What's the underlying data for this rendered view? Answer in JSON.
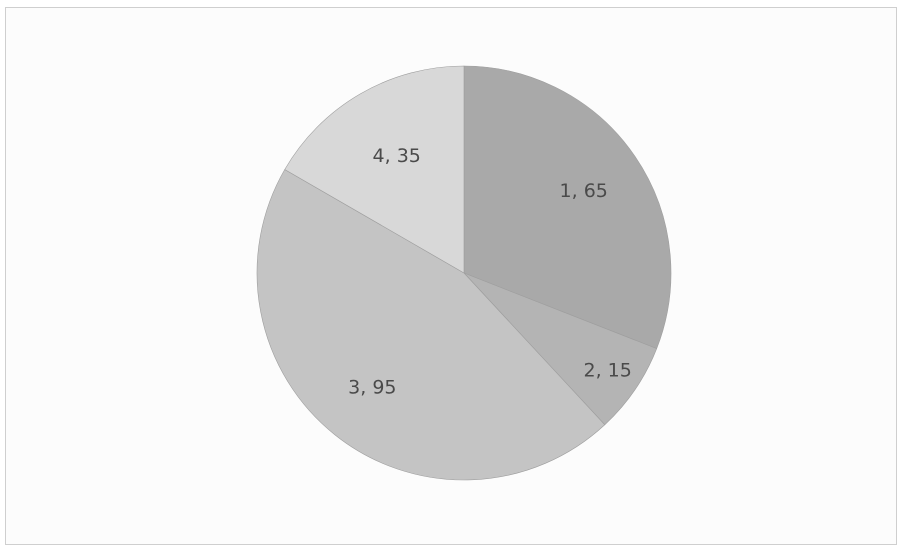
{
  "chart_data": {
    "type": "pie",
    "title": "",
    "slices": [
      {
        "label": "1, 65",
        "category": "1",
        "value": 65,
        "color": "#a9a9a9"
      },
      {
        "label": "2, 15",
        "category": "2",
        "value": 15,
        "color": "#b4b4b4"
      },
      {
        "label": "3, 95",
        "category": "3",
        "value": 95,
        "color": "#c4c4c4"
      },
      {
        "label": "4, 35",
        "category": "4",
        "value": 35,
        "color": "#d8d8d8"
      }
    ],
    "start_angle": "12 o'clock",
    "direction": "clockwise",
    "legend": "none"
  }
}
